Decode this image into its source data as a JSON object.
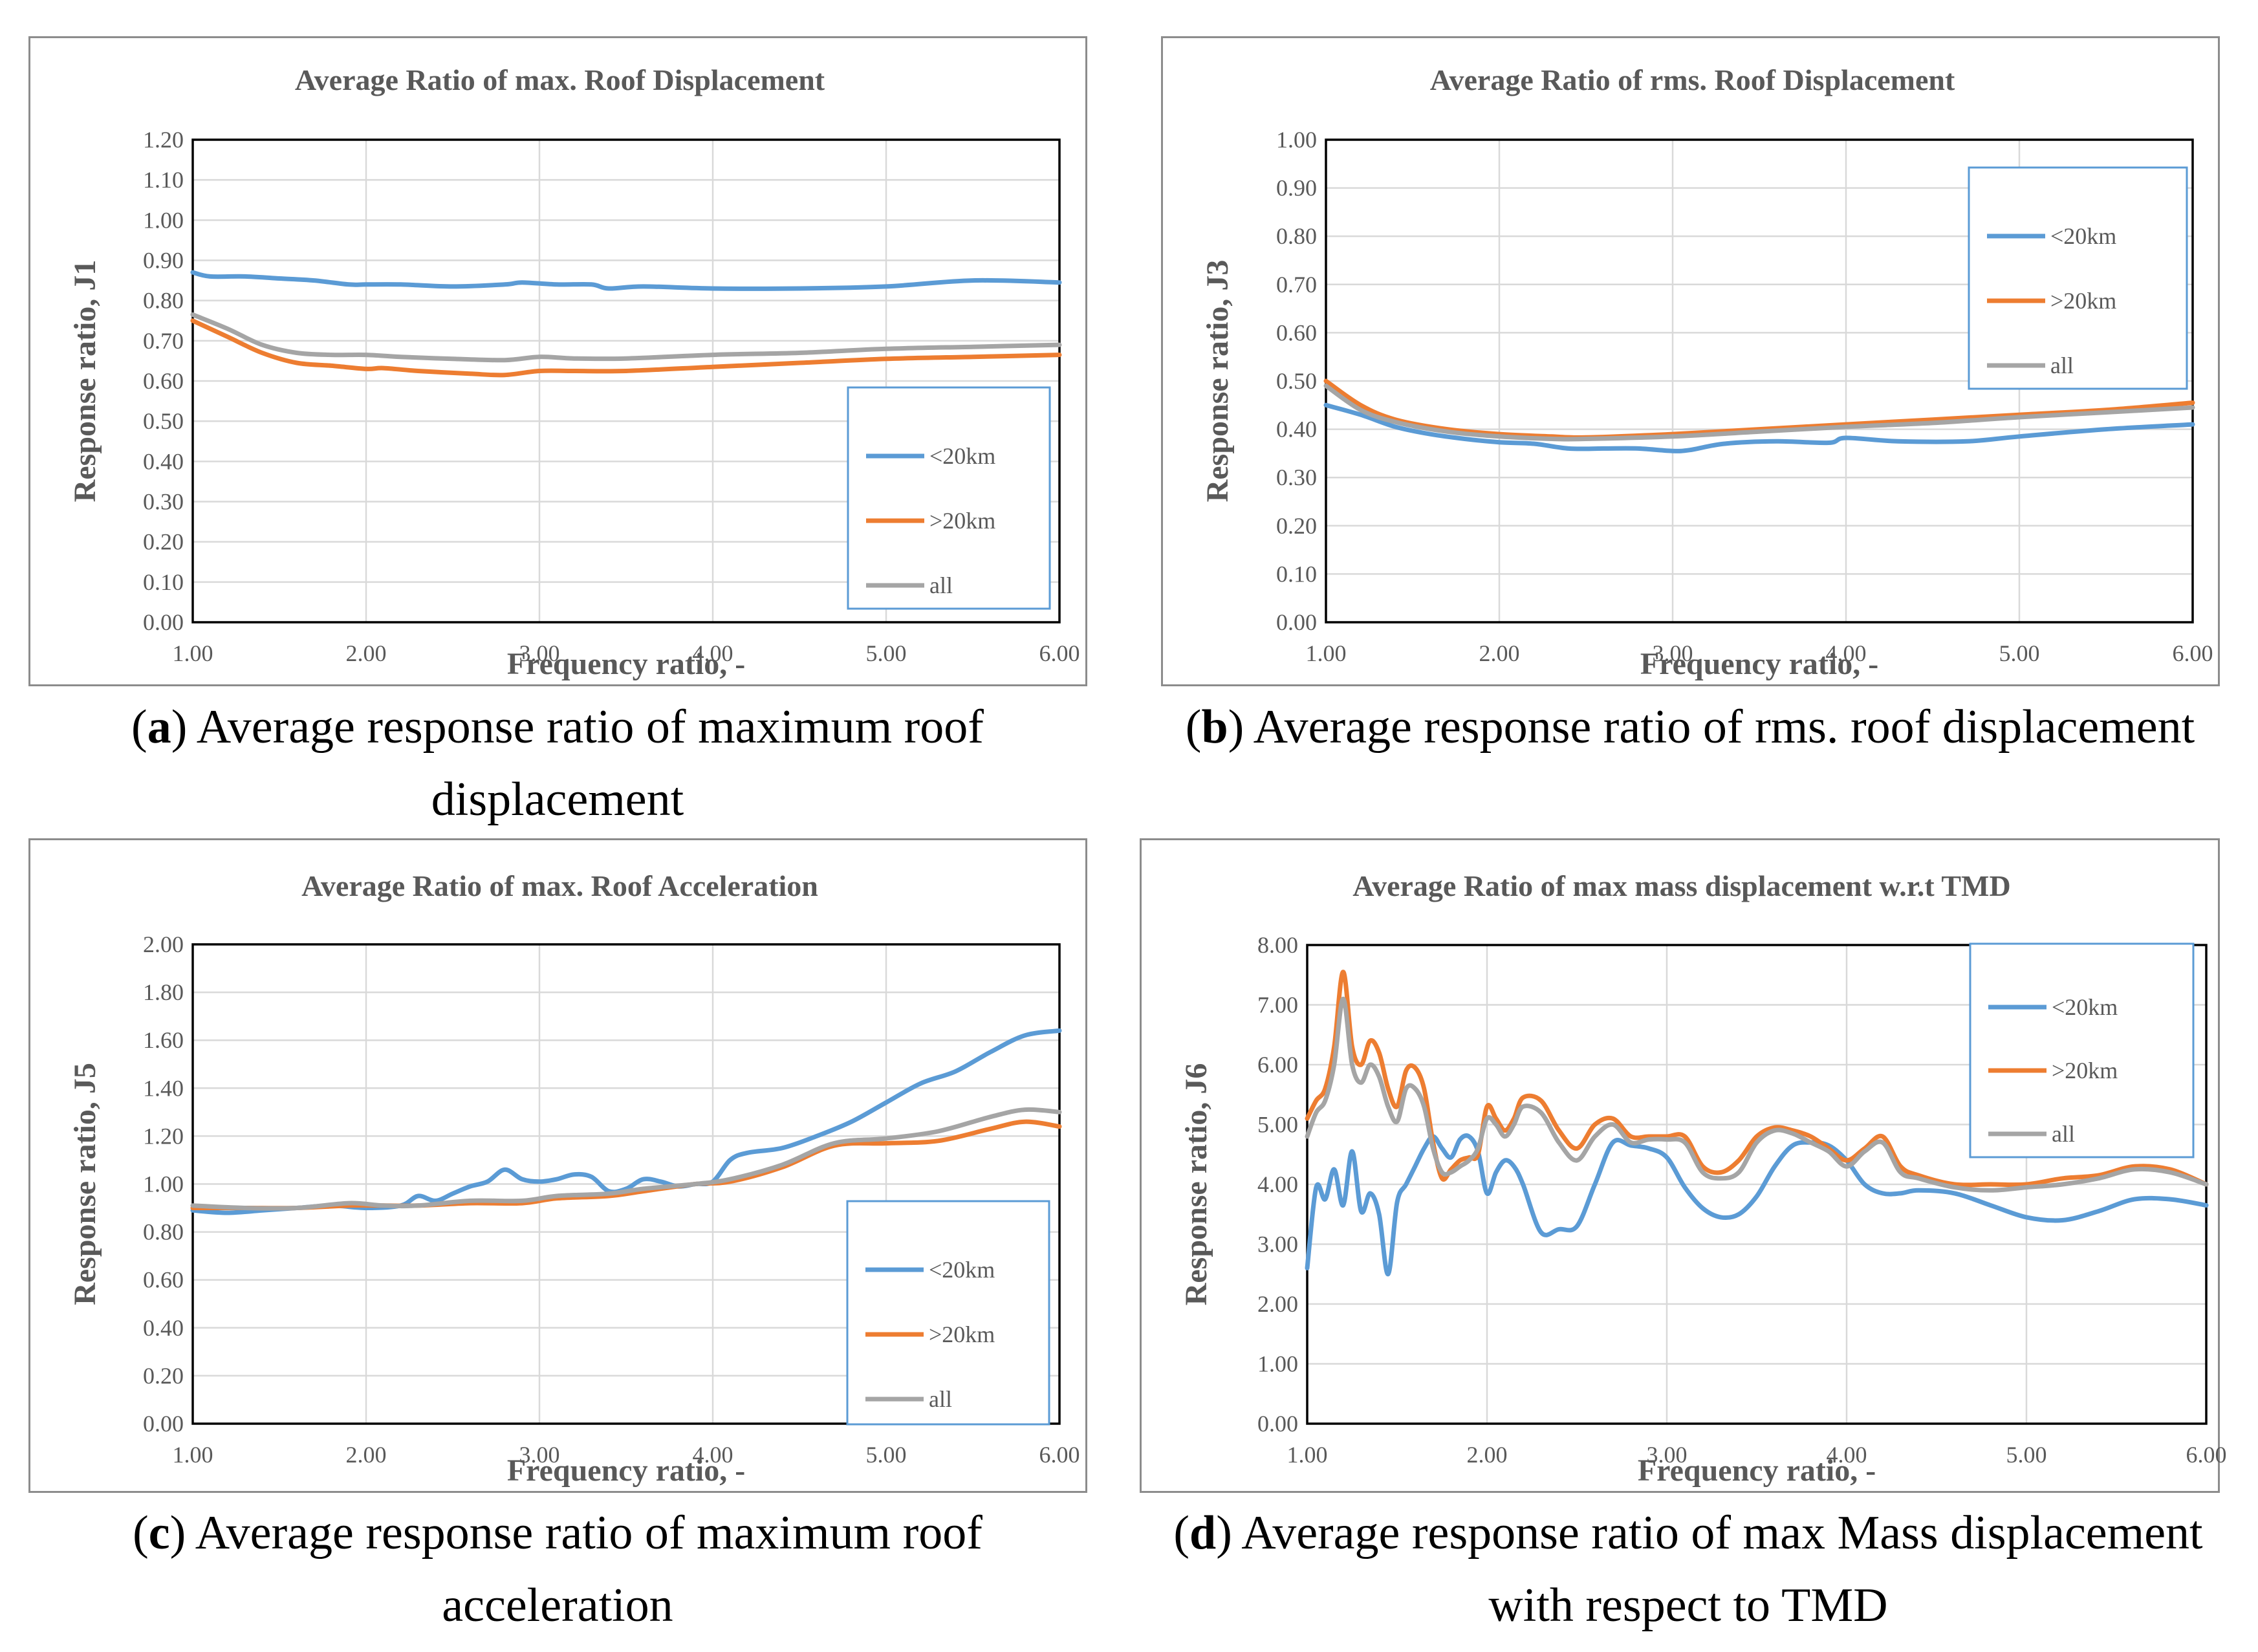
{
  "chart_data": [
    {
      "id": "a",
      "type": "line",
      "title": "Average Ratio of max. Roof Displacement",
      "xlabel": "Frequency ratio, -",
      "ylabel": "Response ratio, J1",
      "xlim": [
        1,
        6
      ],
      "ylim": [
        0,
        1.2
      ],
      "xticks": [
        "1.00",
        "2.00",
        "3.00",
        "4.00",
        "5.00",
        "6.00"
      ],
      "yticks": [
        "0.00",
        "0.10",
        "0.20",
        "0.30",
        "0.40",
        "0.50",
        "0.60",
        "0.70",
        "0.80",
        "0.90",
        "1.00",
        "1.10",
        "1.20"
      ],
      "legend": "right",
      "caption_letter": "a",
      "caption_text": "Average response ratio of maximum roof displacement",
      "series": [
        {
          "name": "<20km",
          "color": "#5b9bd5",
          "x": [
            1.0,
            1.1,
            1.3,
            1.5,
            1.7,
            1.9,
            2.0,
            2.2,
            2.5,
            2.8,
            2.9,
            3.1,
            3.3,
            3.4,
            3.6,
            4.0,
            4.5,
            5.0,
            5.5,
            6.0
          ],
          "y": [
            0.87,
            0.86,
            0.86,
            0.855,
            0.85,
            0.84,
            0.84,
            0.84,
            0.835,
            0.84,
            0.845,
            0.84,
            0.84,
            0.83,
            0.835,
            0.83,
            0.83,
            0.835,
            0.85,
            0.845
          ]
        },
        {
          "name": ">20km",
          "color": "#ed7d31",
          "x": [
            1.0,
            1.2,
            1.4,
            1.6,
            1.8,
            2.0,
            2.1,
            2.3,
            2.6,
            2.8,
            3.0,
            3.2,
            3.5,
            4.0,
            4.5,
            5.0,
            5.5,
            6.0
          ],
          "y": [
            0.75,
            0.71,
            0.67,
            0.645,
            0.638,
            0.63,
            0.632,
            0.625,
            0.618,
            0.615,
            0.625,
            0.625,
            0.625,
            0.635,
            0.645,
            0.655,
            0.66,
            0.665
          ]
        },
        {
          "name": "all",
          "color": "#a5a5a5",
          "x": [
            1.0,
            1.2,
            1.4,
            1.6,
            1.8,
            2.0,
            2.2,
            2.5,
            2.8,
            3.0,
            3.2,
            3.5,
            4.0,
            4.5,
            5.0,
            5.5,
            6.0
          ],
          "y": [
            0.765,
            0.73,
            0.69,
            0.67,
            0.665,
            0.665,
            0.66,
            0.655,
            0.652,
            0.66,
            0.656,
            0.656,
            0.665,
            0.67,
            0.68,
            0.685,
            0.69
          ]
        }
      ]
    },
    {
      "id": "b",
      "type": "line",
      "title": "Average Ratio of rms. Roof Displacement",
      "xlabel": "Frequency ratio, -",
      "ylabel": "Response ratio, J3",
      "xlim": [
        1,
        6
      ],
      "ylim": [
        0,
        1.0
      ],
      "xticks": [
        "1.00",
        "2.00",
        "3.00",
        "4.00",
        "5.00",
        "6.00"
      ],
      "yticks": [
        "0.00",
        "0.10",
        "0.20",
        "0.30",
        "0.40",
        "0.50",
        "0.60",
        "0.70",
        "0.80",
        "0.90",
        "1.00"
      ],
      "legend": "top-right",
      "caption_letter": "b",
      "caption_text": "Average response ratio of rms. roof displacement",
      "series": [
        {
          "name": "<20km",
          "color": "#5b9bd5",
          "x": [
            1.0,
            1.2,
            1.4,
            1.6,
            1.8,
            2.0,
            2.2,
            2.4,
            2.6,
            2.8,
            3.0,
            3.1,
            3.3,
            3.6,
            3.9,
            4.0,
            4.3,
            4.7,
            5.0,
            5.5,
            6.0
          ],
          "y": [
            0.45,
            0.43,
            0.405,
            0.39,
            0.38,
            0.373,
            0.37,
            0.36,
            0.36,
            0.36,
            0.355,
            0.357,
            0.37,
            0.375,
            0.372,
            0.382,
            0.375,
            0.375,
            0.385,
            0.4,
            0.41
          ]
        },
        {
          "name": ">20km",
          "color": "#ed7d31",
          "x": [
            1.0,
            1.2,
            1.4,
            1.7,
            2.0,
            2.3,
            2.5,
            3.0,
            3.5,
            4.0,
            4.5,
            5.0,
            5.5,
            6.0
          ],
          "y": [
            0.5,
            0.45,
            0.42,
            0.4,
            0.39,
            0.385,
            0.383,
            0.39,
            0.4,
            0.41,
            0.42,
            0.43,
            0.44,
            0.455
          ]
        },
        {
          "name": "all",
          "color": "#a5a5a5",
          "x": [
            1.0,
            1.2,
            1.4,
            1.7,
            2.0,
            2.3,
            2.5,
            3.0,
            3.5,
            4.0,
            4.5,
            5.0,
            5.5,
            6.0
          ],
          "y": [
            0.49,
            0.44,
            0.415,
            0.395,
            0.385,
            0.38,
            0.38,
            0.385,
            0.395,
            0.405,
            0.413,
            0.425,
            0.435,
            0.445
          ]
        }
      ]
    },
    {
      "id": "c",
      "type": "line",
      "title": "Average Ratio of max. Roof Acceleration",
      "xlabel": "Frequency ratio, -",
      "ylabel": "Response ratio, J5",
      "xlim": [
        1,
        6
      ],
      "ylim": [
        0,
        2.0
      ],
      "xticks": [
        "1.00",
        "2.00",
        "3.00",
        "4.00",
        "5.00",
        "6.00"
      ],
      "yticks": [
        "0.00",
        "0.20",
        "0.40",
        "0.60",
        "0.80",
        "1.00",
        "1.20",
        "1.40",
        "1.60",
        "1.80",
        "2.00"
      ],
      "legend": "right",
      "caption_letter": "c",
      "caption_text": "Average response ratio of maximum roof acceleration",
      "series": [
        {
          "name": "<20km",
          "color": "#5b9bd5",
          "x": [
            1.0,
            1.2,
            1.4,
            1.6,
            1.8,
            2.0,
            2.2,
            2.3,
            2.4,
            2.5,
            2.6,
            2.7,
            2.8,
            2.9,
            3.0,
            3.1,
            3.2,
            3.3,
            3.4,
            3.5,
            3.6,
            3.7,
            3.8,
            3.9,
            4.0,
            4.1,
            4.2,
            4.4,
            4.6,
            4.8,
            5.0,
            5.2,
            5.4,
            5.6,
            5.8,
            6.0
          ],
          "y": [
            0.89,
            0.88,
            0.89,
            0.9,
            0.91,
            0.9,
            0.91,
            0.95,
            0.93,
            0.96,
            0.99,
            1.01,
            1.06,
            1.02,
            1.01,
            1.02,
            1.04,
            1.03,
            0.97,
            0.98,
            1.02,
            1.01,
            0.99,
            1.0,
            1.01,
            1.1,
            1.13,
            1.15,
            1.2,
            1.26,
            1.34,
            1.42,
            1.47,
            1.55,
            1.62,
            1.64
          ]
        },
        {
          "name": ">20km",
          "color": "#ed7d31",
          "x": [
            1.0,
            1.3,
            1.6,
            1.9,
            2.1,
            2.3,
            2.6,
            2.9,
            3.1,
            3.4,
            3.6,
            3.9,
            4.1,
            4.4,
            4.7,
            5.0,
            5.3,
            5.6,
            5.8,
            6.0
          ],
          "y": [
            0.9,
            0.9,
            0.9,
            0.91,
            0.91,
            0.91,
            0.92,
            0.92,
            0.94,
            0.95,
            0.97,
            1.0,
            1.01,
            1.07,
            1.16,
            1.17,
            1.18,
            1.23,
            1.26,
            1.24
          ]
        },
        {
          "name": "all",
          "color": "#a5a5a5",
          "x": [
            1.0,
            1.3,
            1.6,
            1.9,
            2.1,
            2.3,
            2.6,
            2.9,
            3.1,
            3.4,
            3.6,
            3.9,
            4.1,
            4.4,
            4.7,
            5.0,
            5.3,
            5.6,
            5.8,
            6.0
          ],
          "y": [
            0.91,
            0.9,
            0.9,
            0.92,
            0.91,
            0.91,
            0.93,
            0.93,
            0.95,
            0.96,
            0.98,
            1.0,
            1.02,
            1.08,
            1.17,
            1.19,
            1.22,
            1.28,
            1.31,
            1.3
          ]
        }
      ]
    },
    {
      "id": "d",
      "type": "line",
      "title": "Average Ratio of max mass displacement w.r.t TMD",
      "xlabel": "Frequency ratio, -",
      "ylabel": "Response ratio, J6",
      "xlim": [
        1,
        6
      ],
      "ylim": [
        0,
        8
      ],
      "xticks": [
        "1.00",
        "2.00",
        "3.00",
        "4.00",
        "5.00",
        "6.00"
      ],
      "yticks": [
        "0.00",
        "1.00",
        "2.00",
        "3.00",
        "4.00",
        "5.00",
        "6.00",
        "7.00",
        "8.00"
      ],
      "legend": "top-right",
      "caption_letter": "d",
      "caption_text": "Average response ratio of max Mass displacement with respect to TMD",
      "series": [
        {
          "name": "<20km",
          "color": "#5b9bd5",
          "x": [
            1.0,
            1.05,
            1.1,
            1.15,
            1.2,
            1.25,
            1.3,
            1.35,
            1.4,
            1.45,
            1.5,
            1.55,
            1.6,
            1.65,
            1.7,
            1.75,
            1.8,
            1.85,
            1.9,
            1.95,
            2.0,
            2.05,
            2.1,
            2.15,
            2.2,
            2.3,
            2.4,
            2.5,
            2.6,
            2.7,
            2.8,
            2.9,
            3.0,
            3.1,
            3.2,
            3.3,
            3.4,
            3.5,
            3.6,
            3.7,
            3.8,
            3.9,
            4.0,
            4.1,
            4.2,
            4.3,
            4.4,
            4.6,
            4.8,
            5.0,
            5.2,
            5.4,
            5.6,
            5.8,
            6.0
          ],
          "y": [
            2.6,
            3.95,
            3.75,
            4.25,
            3.65,
            4.55,
            3.55,
            3.85,
            3.5,
            2.5,
            3.7,
            4.0,
            4.3,
            4.6,
            4.8,
            4.6,
            4.45,
            4.75,
            4.8,
            4.55,
            3.85,
            4.2,
            4.4,
            4.3,
            4.0,
            3.2,
            3.25,
            3.3,
            4.0,
            4.7,
            4.65,
            4.6,
            4.45,
            3.95,
            3.6,
            3.45,
            3.5,
            3.8,
            4.3,
            4.65,
            4.7,
            4.65,
            4.4,
            4.0,
            3.85,
            3.85,
            3.9,
            3.85,
            3.65,
            3.45,
            3.4,
            3.55,
            3.75,
            3.75,
            3.65
          ]
        },
        {
          "name": ">20km",
          "color": "#ed7d31",
          "x": [
            1.0,
            1.05,
            1.1,
            1.15,
            1.2,
            1.25,
            1.3,
            1.35,
            1.4,
            1.45,
            1.5,
            1.55,
            1.6,
            1.65,
            1.7,
            1.75,
            1.8,
            1.85,
            1.9,
            1.95,
            2.0,
            2.05,
            2.1,
            2.15,
            2.2,
            2.3,
            2.4,
            2.5,
            2.6,
            2.7,
            2.8,
            2.9,
            3.0,
            3.1,
            3.2,
            3.3,
            3.4,
            3.5,
            3.6,
            3.7,
            3.8,
            3.9,
            4.0,
            4.1,
            4.2,
            4.3,
            4.4,
            4.6,
            4.8,
            5.0,
            5.2,
            5.4,
            5.6,
            5.8,
            6.0
          ],
          "y": [
            5.1,
            5.4,
            5.6,
            6.3,
            7.55,
            6.3,
            6.0,
            6.4,
            6.2,
            5.6,
            5.3,
            5.9,
            5.95,
            5.6,
            4.7,
            4.1,
            4.25,
            4.4,
            4.45,
            4.5,
            5.3,
            5.1,
            4.9,
            5.1,
            5.45,
            5.4,
            4.9,
            4.6,
            5.0,
            5.1,
            4.8,
            4.8,
            4.8,
            4.8,
            4.3,
            4.2,
            4.4,
            4.8,
            4.95,
            4.9,
            4.8,
            4.6,
            4.4,
            4.6,
            4.8,
            4.3,
            4.15,
            4.0,
            4.0,
            4.0,
            4.1,
            4.15,
            4.3,
            4.25,
            4.0
          ]
        },
        {
          "name": "all",
          "color": "#a5a5a5",
          "x": [
            1.0,
            1.05,
            1.1,
            1.15,
            1.2,
            1.25,
            1.3,
            1.35,
            1.4,
            1.45,
            1.5,
            1.55,
            1.6,
            1.65,
            1.7,
            1.75,
            1.8,
            1.85,
            1.9,
            1.95,
            2.0,
            2.05,
            2.1,
            2.15,
            2.2,
            2.3,
            2.4,
            2.5,
            2.6,
            2.7,
            2.8,
            2.9,
            3.0,
            3.1,
            3.2,
            3.3,
            3.4,
            3.5,
            3.6,
            3.7,
            3.8,
            3.9,
            4.0,
            4.1,
            4.2,
            4.3,
            4.4,
            4.6,
            4.8,
            5.0,
            5.2,
            5.4,
            5.6,
            5.8,
            6.0
          ],
          "y": [
            4.8,
            5.2,
            5.4,
            6.0,
            7.1,
            6.0,
            5.7,
            6.0,
            5.8,
            5.3,
            5.05,
            5.6,
            5.6,
            5.3,
            4.6,
            4.2,
            4.2,
            4.3,
            4.4,
            4.6,
            5.1,
            5.0,
            4.8,
            5.0,
            5.3,
            5.2,
            4.7,
            4.4,
            4.8,
            5.0,
            4.7,
            4.75,
            4.75,
            4.7,
            4.2,
            4.1,
            4.2,
            4.7,
            4.9,
            4.85,
            4.7,
            4.55,
            4.3,
            4.55,
            4.7,
            4.2,
            4.1,
            3.95,
            3.9,
            3.95,
            4.0,
            4.1,
            4.25,
            4.2,
            4.0
          ]
        }
      ]
    }
  ]
}
